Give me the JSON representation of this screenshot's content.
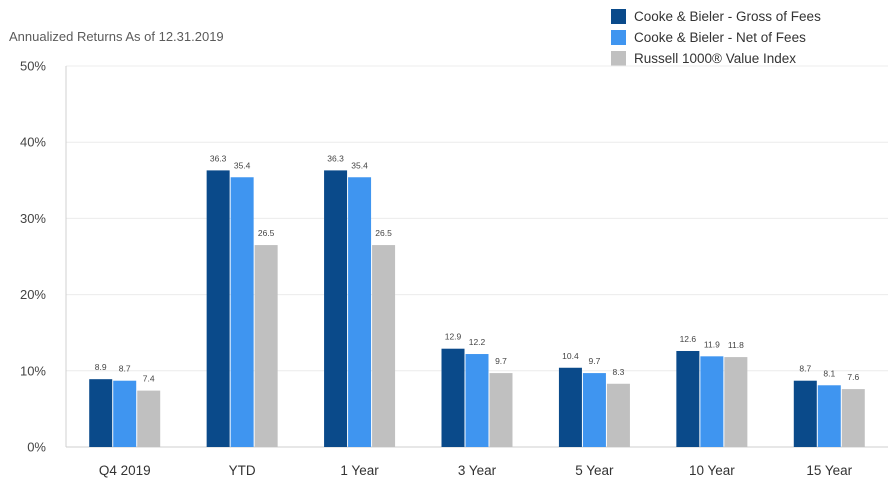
{
  "chart_data": {
    "type": "bar",
    "title": "",
    "subtitle": "Annualized Returns As of 12.31.2019",
    "xlabel": "",
    "ylabel": "",
    "ylim": [
      0,
      50
    ],
    "yticks": [
      0,
      10,
      20,
      30,
      40,
      50
    ],
    "ytick_labels": [
      "0%",
      "10%",
      "20%",
      "30%",
      "40%",
      "50%"
    ],
    "grid": true,
    "legend_position": "top-right",
    "categories": [
      "Q4 2019",
      "YTD",
      "1 Year",
      "3 Year",
      "5 Year",
      "10 Year",
      "15 Year"
    ],
    "series": [
      {
        "name": "Cooke & Bieler - Gross of Fees",
        "color": "#0a4a8a",
        "values": [
          8.9,
          36.3,
          36.3,
          12.9,
          10.4,
          12.6,
          8.7
        ]
      },
      {
        "name": "Cooke & Bieler - Net of Fees",
        "color": "#3f95f0",
        "values": [
          8.7,
          35.4,
          35.4,
          12.2,
          9.7,
          11.9,
          8.1
        ]
      },
      {
        "name": "Russell 1000® Value Index",
        "color": "#c0c0c0",
        "values": [
          7.4,
          26.5,
          26.5,
          9.7,
          8.3,
          11.8,
          7.6
        ]
      }
    ]
  }
}
